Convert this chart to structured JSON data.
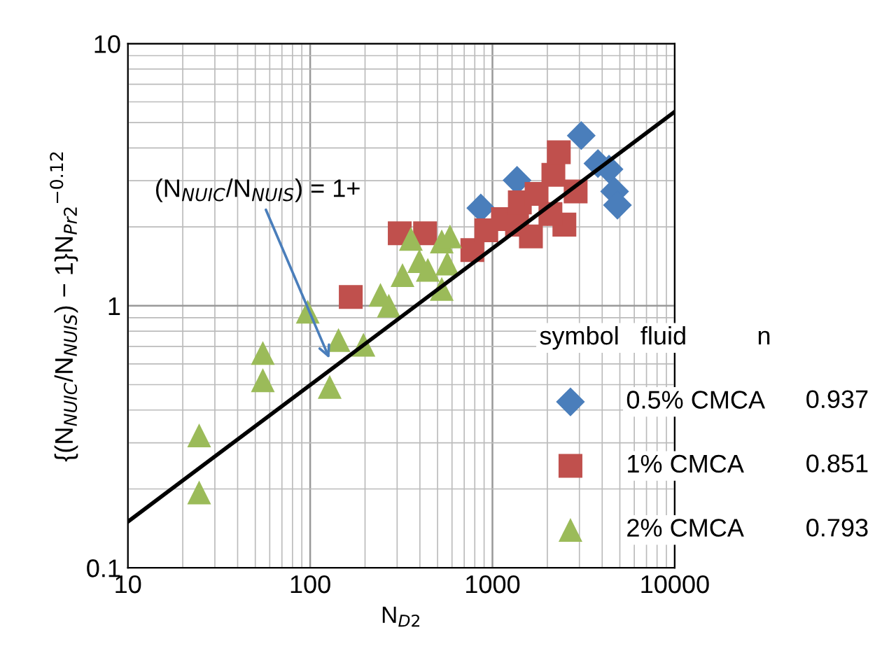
{
  "chart_data": {
    "type": "scatter",
    "xlabel": "N$_{D2}$",
    "ylabel": "{(N$_{NUIC}$/N$_{NUIS}$) − 1}N$_{Pr2}$$^{−0.12}$",
    "log": "xy",
    "xlim": [
      10,
      10000
    ],
    "ylim": [
      0.1,
      10
    ],
    "xticks": [
      10,
      100,
      1000,
      10000
    ],
    "yticks": [
      0.1,
      1,
      10
    ],
    "grid": true,
    "legend": "bottom right",
    "legend_title": "symbol   fluid          n",
    "annotations": [
      {
        "text": "(N$_{NUIC}$/N$_{NUIS}$) = 1+",
        "x": 130,
        "y": 0.61
      },
      "0.937",
      "0.851",
      "0.793"
    ],
    "series": [
      {
        "name": "0.5% CMCA",
        "color": "#4a7ebb",
        "marker": "diamond",
        "x": [
          863,
          1364,
          3070,
          3790,
          4360,
          4680,
          4850
        ],
        "values": [
          2.36,
          3.01,
          4.46,
          3.49,
          3.32,
          2.73,
          2.42
        ]
      },
      {
        "name": "1% CMCA",
        "color": "#c0504d",
        "marker": "square",
        "x": [
          167,
          310,
          427,
          776,
          925,
          1142,
          1364,
          1413,
          1746,
          2159,
          2312,
          2481,
          2860,
          2080,
          1626
        ],
        "values": [
          1.08,
          1.89,
          1.89,
          1.63,
          1.94,
          2.14,
          2.04,
          2.48,
          2.67,
          3.16,
          3.85,
          2.04,
          2.73,
          2.24,
          1.84
        ]
      },
      {
        "name": "2% CMCA",
        "color": "#9bbb59",
        "marker": "triangle",
        "x": [
          24.6,
          24.6,
          55,
          55,
          97,
          128,
          143,
          196,
          243,
          270,
          321,
          357,
          397,
          442,
          527,
          527,
          585,
          565
        ],
        "values": [
          0.32,
          0.194,
          0.66,
          0.52,
          0.95,
          0.49,
          0.74,
          0.71,
          1.1,
          1.0,
          1.31,
          1.8,
          1.48,
          1.37,
          1.16,
          1.76,
          1.84,
          1.45
        ]
      },
      {
        "type": "line",
        "color": "#000000",
        "marker": "none",
        "x": [
          10,
          10000
        ],
        "values": [
          0.15,
          5.5
        ]
      }
    ]
  }
}
